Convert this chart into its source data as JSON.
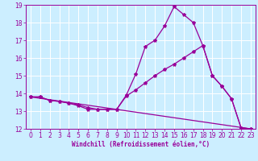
{
  "bg_color": "#cceeff",
  "grid_color": "#ffffff",
  "line_color": "#990099",
  "marker": "*",
  "xlabel": "Windchill (Refroidissement éolien,°C)",
  "xlim": [
    -0.5,
    23.5
  ],
  "ylim": [
    12,
    19
  ],
  "yticks": [
    12,
    13,
    14,
    15,
    16,
    17,
    18,
    19
  ],
  "xticks": [
    0,
    1,
    2,
    3,
    4,
    5,
    6,
    7,
    8,
    9,
    10,
    11,
    12,
    13,
    14,
    15,
    16,
    17,
    18,
    19,
    20,
    21,
    22,
    23
  ],
  "line1_x": [
    0,
    1,
    2,
    3,
    4,
    5,
    6,
    7,
    8,
    9,
    10,
    11,
    12,
    13,
    14,
    15,
    16,
    17,
    18,
    19,
    20,
    21,
    22,
    23
  ],
  "line1_y": [
    13.8,
    13.8,
    13.6,
    13.55,
    13.45,
    13.3,
    13.1,
    13.1,
    13.1,
    13.1,
    13.9,
    15.1,
    16.65,
    17.0,
    17.8,
    18.9,
    18.45,
    18.0,
    16.7,
    15.0,
    14.4,
    13.7,
    12.05,
    12.0
  ],
  "line2_x": [
    0,
    1,
    2,
    3,
    4,
    5,
    6,
    7,
    8,
    9,
    10,
    11,
    12,
    13,
    14,
    15,
    16,
    17,
    18,
    19,
    20,
    21,
    22,
    23
  ],
  "line2_y": [
    13.8,
    13.8,
    13.6,
    13.55,
    13.45,
    13.35,
    13.2,
    13.1,
    13.1,
    13.1,
    13.85,
    14.2,
    14.6,
    15.0,
    15.35,
    15.65,
    16.0,
    16.35,
    16.7,
    15.0,
    14.4,
    13.7,
    12.05,
    12.0
  ],
  "line3_x": [
    0,
    23
  ],
  "line3_y": [
    13.8,
    12.0
  ]
}
